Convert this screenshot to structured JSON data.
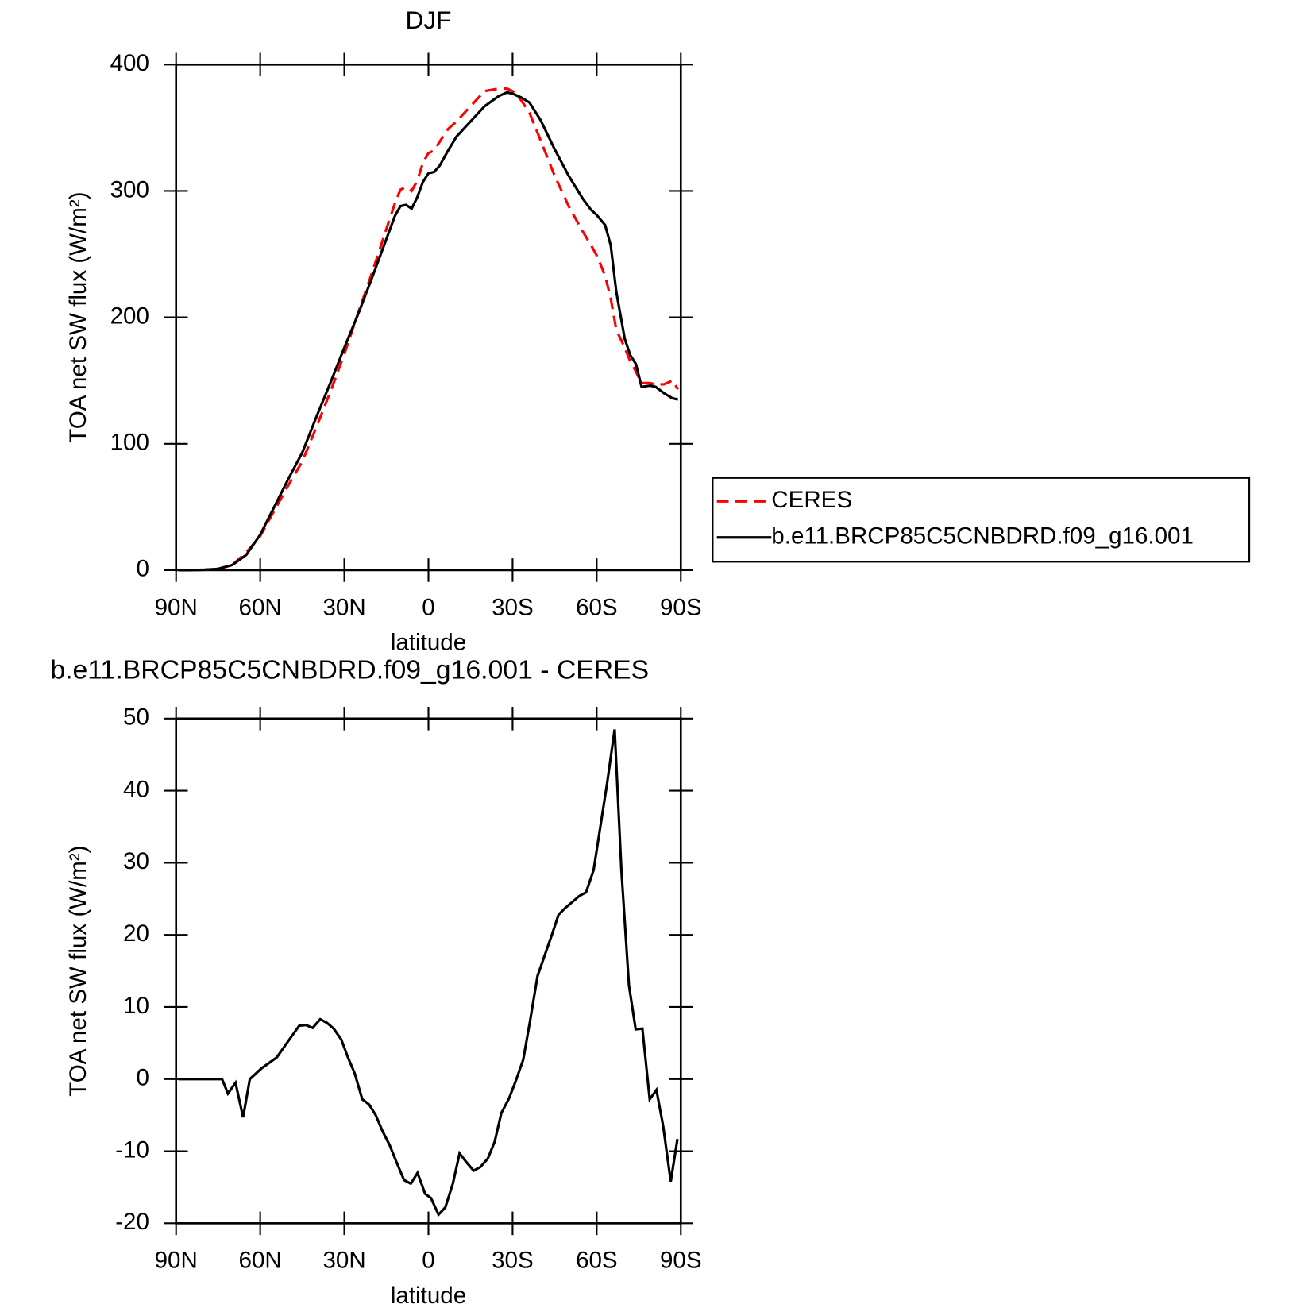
{
  "chart_data": [
    {
      "type": "line",
      "title": "DJF",
      "xlabel": "latitude",
      "ylabel": "TOA net SW flux (W/m²)",
      "x": [
        89,
        85,
        80,
        75,
        70,
        65,
        60,
        55,
        50,
        45,
        40,
        35,
        30,
        25,
        20,
        15,
        12,
        10,
        8,
        6,
        4,
        2,
        0,
        -2,
        -4,
        -7,
        -10,
        -15,
        -20,
        -25,
        -28,
        -30,
        -33,
        -36,
        -40,
        -45,
        -50,
        -55,
        -58,
        -60,
        -63,
        -65,
        -67,
        -70,
        -72,
        -74,
        -76,
        -79,
        -81,
        -84,
        -87,
        -89
      ],
      "xlim": [
        90,
        -90
      ],
      "xticks": [
        {
          "value": 90,
          "label": "90N"
        },
        {
          "value": 60,
          "label": "60N"
        },
        {
          "value": 30,
          "label": "30N"
        },
        0,
        {
          "value": -30,
          "label": "30S"
        },
        {
          "value": -60,
          "label": "60S"
        },
        {
          "value": -90,
          "label": "90S"
        }
      ],
      "ylim": [
        0,
        400
      ],
      "yticks": [
        0,
        100,
        200,
        300,
        400
      ],
      "legend": "right",
      "series": [
        {
          "name": "CERES",
          "color": "#ff0000",
          "dash": "dashed",
          "values": [
            0,
            0,
            0.3,
            1,
            4,
            14,
            27,
            47,
            67,
            86,
            113,
            141,
            171,
            204,
            236,
            270,
            290,
            301,
            303,
            300,
            308,
            322,
            330,
            332,
            339,
            349,
            355,
            367,
            379,
            381,
            381,
            379,
            372,
            362,
            340,
            312,
            288,
            268,
            257,
            249,
            233,
            215,
            190,
            176,
            165,
            157,
            148,
            148,
            147,
            147,
            150,
            143
          ]
        },
        {
          "name": "b.e11.BRCP85C5CNBDRD.f09_g16.001",
          "color": "#000000",
          "dash": "solid",
          "values": [
            0,
            0,
            0.3,
            1,
            4,
            12,
            28,
            50,
            72,
            93,
            121,
            148,
            176,
            203,
            232,
            262,
            280,
            288,
            289,
            286,
            295,
            307,
            314,
            315,
            320,
            332,
            343,
            355,
            367,
            375,
            378,
            377,
            374,
            370,
            356,
            333,
            312,
            294,
            285,
            281,
            273,
            257,
            220,
            183,
            170,
            163,
            145,
            146,
            145,
            140,
            136,
            135
          ]
        }
      ]
    },
    {
      "type": "line",
      "title": "b.e11.BRCP85C5CNBDRD.f09_g16.001 - CERES",
      "xlabel": "latitude",
      "ylabel": "TOA net SW flux (W/m²)",
      "x": [
        89.1,
        73.6,
        71.5,
        68.8,
        66.1,
        63.7,
        59.5,
        54.1,
        50.5,
        46.1,
        43.7,
        41.3,
        38.6,
        36.2,
        33.8,
        31.1,
        28.7,
        26.3,
        23.6,
        21.2,
        18.8,
        16.4,
        13.8,
        11.4,
        8.7,
        6.3,
        3.9,
        1.2,
        -0.9,
        -3.6,
        -6.0,
        -8.7,
        -11.1,
        -13.5,
        -16.1,
        -18.5,
        -21.2,
        -23.6,
        -26.0,
        -28.7,
        -31.1,
        -33.8,
        -36.2,
        -38.9,
        -41.3,
        -44.0,
        -46.4,
        -48.7,
        -51.4,
        -53.8,
        -56.2,
        -58.9,
        -61.3,
        -63.7,
        -66.4,
        -68.8,
        -71.5,
        -73.9,
        -76.3,
        -78.9,
        -81.3,
        -83.7,
        -86.4,
        -88.8
      ],
      "xlim": [
        90,
        -90
      ],
      "xticks": [
        {
          "value": 90,
          "label": "90N"
        },
        {
          "value": 60,
          "label": "60N"
        },
        {
          "value": 30,
          "label": "30N"
        },
        0,
        {
          "value": -30,
          "label": "30S"
        },
        {
          "value": -60,
          "label": "60S"
        },
        {
          "value": -90,
          "label": "90S"
        }
      ],
      "ylim": [
        -20,
        50
      ],
      "yticks": [
        -20,
        -10,
        0,
        10,
        20,
        30,
        40,
        50
      ],
      "series": [
        {
          "color": "#000000",
          "dash": "solid",
          "values": [
            0,
            0,
            -2,
            -0.5,
            -5.3,
            0,
            1.5,
            3,
            5,
            7.4,
            7.5,
            7.1,
            8.3,
            7.8,
            7,
            5.5,
            3,
            0.8,
            -2.8,
            -3.5,
            -5,
            -7.2,
            -9.2,
            -11.5,
            -14,
            -14.5,
            -13,
            -15.9,
            -16.5,
            -18.8,
            -17.8,
            -14.5,
            -10.3,
            -11.5,
            -12.7,
            -12.2,
            -11,
            -8.7,
            -4.7,
            -2.7,
            -0.3,
            2.7,
            8,
            14.3,
            17,
            20,
            22.8,
            23.7,
            24.6,
            25.4,
            25.9,
            29,
            35,
            41,
            48.5,
            29,
            13,
            6.9,
            7,
            -2.8,
            -1.5,
            -6.5,
            -14.2,
            -8.3
          ]
        }
      ]
    }
  ]
}
